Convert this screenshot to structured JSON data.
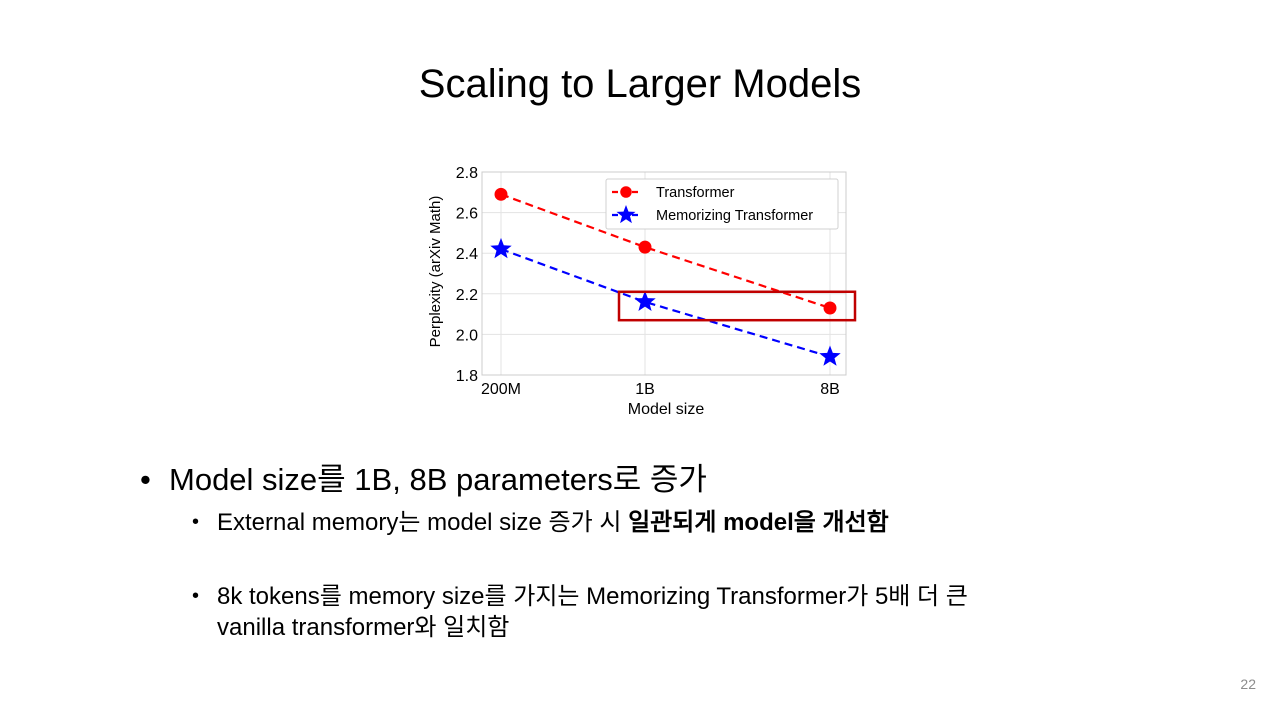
{
  "slide": {
    "title": "Scaling to Larger Models",
    "page_number": "22"
  },
  "bullets": {
    "main": "Model size를 1B, 8B parameters로 증가",
    "sub1_pre": "External memory는 model size 증가 시 ",
    "sub1_bold": "일관되게 model을 개선함",
    "sub2_line1": "8k tokens를 memory size를 가지는 Memorizing Transformer가 5배 더 큰",
    "sub2_line2": "vanilla transformer와 일치함"
  },
  "chart_data": {
    "type": "line",
    "categories": [
      "200M",
      "1B",
      "8B"
    ],
    "series": [
      {
        "name": "Transformer",
        "values": [
          2.69,
          2.43,
          2.13
        ],
        "color": "#ff0000",
        "marker": "circle"
      },
      {
        "name": "Memorizing Transformer",
        "values": [
          2.42,
          2.16,
          1.89
        ],
        "color": "#0000ff",
        "marker": "star"
      }
    ],
    "xlabel": "Model size",
    "ylabel": "Perplexity (arXiv Math)",
    "ylim": [
      1.8,
      2.8
    ],
    "yticks": [
      "1.8",
      "2.0",
      "2.2",
      "2.4",
      "2.6",
      "2.8"
    ],
    "grid": true,
    "legend_position": "top-right",
    "highlight_box": {
      "from_category": "1B",
      "to_category": "8B",
      "y_range": [
        2.07,
        2.21
      ],
      "color": "#c00000"
    }
  }
}
